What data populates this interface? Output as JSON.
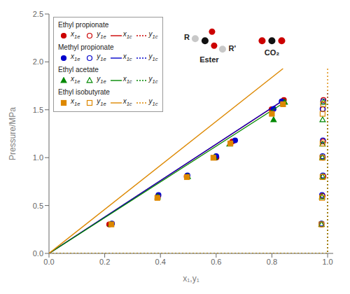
{
  "chart_data": {
    "type": "scatter",
    "xlabel": "x₁,y₁",
    "ylabel": "Pressure/MPa",
    "xlim": [
      0.0,
      1.02
    ],
    "ylim": [
      0.0,
      2.5
    ],
    "xticks": [
      {
        "value": 0.0,
        "label": "0.0"
      },
      0.2,
      0.4,
      0.6,
      0.8,
      {
        "value": 1.0,
        "label": "1.0"
      }
    ],
    "yticks": [
      {
        "value": 0.0,
        "label": "0.0"
      },
      0.5,
      {
        "value": 1.0,
        "label": "1.0"
      },
      1.5,
      {
        "value": 2.0,
        "label": "2.0"
      },
      2.5
    ],
    "grid": false,
    "legend": "upper left",
    "annotations": [
      "R",
      "R'",
      "Ester",
      "CO₂"
    ],
    "series": [
      {
        "name": "Ethyl propionate",
        "color": "#cc0000",
        "series": [
          {
            "name": "x1e",
            "type": "scatter",
            "marker": "circle",
            "x": [
              0.216,
              0.392,
              0.494,
              0.601,
              0.658,
              0.799,
              0.843
            ],
            "values": [
              0.302,
              0.6,
              0.803,
              1.001,
              1.168,
              1.505,
              1.602
            ]
          },
          {
            "name": "y1e",
            "type": "scatter",
            "marker": "circle-open",
            "x": [
              0.978,
              0.982,
              0.985,
              0.983,
              0.984,
              0.983,
              0.985
            ],
            "values": [
              0.302,
              0.6,
              0.803,
              1.001,
              1.168,
              1.505,
              1.602
            ]
          },
          {
            "name": "x1c",
            "type": "line",
            "line_style": "solid",
            "x": [
              0.0,
              0.843
            ],
            "values": [
              0.0,
              1.602
            ]
          },
          {
            "name": "y1c",
            "type": "line",
            "line_style": "dotted",
            "x": [
              0.0,
              1.0,
              1.0,
              1.0
            ],
            "values": [
              0.0,
              0.0,
              0.0,
              1.68
            ]
          }
        ]
      },
      {
        "name": "Methyl propionate",
        "color": "#0000cc",
        "series": [
          {
            "name": "x1e",
            "type": "scatter",
            "marker": "circle",
            "x": [
              0.226,
              0.393,
              0.497,
              0.6,
              0.668,
              0.806,
              0.835
            ],
            "values": [
              0.311,
              0.609,
              0.815,
              1.015,
              1.18,
              1.508,
              1.588
            ]
          },
          {
            "name": "y1e",
            "type": "scatter",
            "marker": "circle-open",
            "x": [
              0.978,
              0.98,
              0.983,
              0.982,
              0.983,
              0.982,
              0.984
            ],
            "values": [
              0.311,
              0.609,
              0.815,
              1.015,
              1.18,
              1.508,
              1.588
            ]
          },
          {
            "name": "x1c",
            "type": "line",
            "line_style": "solid",
            "x": [
              0.0,
              0.835
            ],
            "values": [
              0.0,
              1.588
            ]
          },
          {
            "name": "y1c",
            "type": "line",
            "line_style": "dotted",
            "x": [
              0.0,
              1.0,
              1.0,
              1.0
            ],
            "values": [
              0.0,
              0.0,
              0.0,
              1.7
            ]
          }
        ]
      },
      {
        "name": "Ethyl acetate",
        "color": "#008800",
        "series": [
          {
            "name": "x1e",
            "type": "scatter",
            "marker": "triangle",
            "x": [
              0.222,
              0.39,
              0.498,
              0.594,
              0.648,
              0.806,
              0.846
            ],
            "values": [
              0.302,
              0.59,
              0.801,
              1.001,
              1.141,
              1.395,
              1.579
            ]
          },
          {
            "name": "y1e",
            "type": "scatter",
            "marker": "triangle-open",
            "x": [
              0.978,
              0.98,
              0.982,
              0.981,
              0.982,
              0.982,
              0.985
            ],
            "values": [
              0.302,
              0.59,
              0.801,
              1.001,
              1.141,
              1.395,
              1.579
            ]
          },
          {
            "name": "x1c",
            "type": "line",
            "line_style": "solid",
            "x": [
              0.0,
              0.846
            ],
            "values": [
              0.0,
              1.579
            ]
          },
          {
            "name": "y1c",
            "type": "line",
            "line_style": "dotted",
            "x": [
              0.0,
              1.0,
              1.0,
              1.0
            ],
            "values": [
              0.0,
              0.0,
              0.0,
              1.6
            ]
          }
        ]
      },
      {
        "name": "Ethyl isobutyrate",
        "color": "#dd8800",
        "series": [
          {
            "name": "x1e",
            "type": "scatter",
            "marker": "square",
            "x": [
              0.224,
              0.389,
              0.495,
              0.59,
              0.651,
              0.8,
              0.84
            ],
            "values": [
              0.303,
              0.58,
              0.797,
              0.999,
              1.148,
              1.458,
              1.558
            ]
          },
          {
            "name": "y1e",
            "type": "scatter",
            "marker": "square-open",
            "x": [
              0.978,
              0.98,
              0.982,
              0.981,
              0.982,
              0.982,
              0.984
            ],
            "values": [
              0.303,
              0.58,
              0.797,
              0.999,
              1.148,
              1.458,
              1.558
            ]
          },
          {
            "name": "x1c",
            "type": "line",
            "line_style": "solid",
            "x": [
              0.0,
              0.84
            ],
            "values": [
              0.0,
              1.93
            ]
          },
          {
            "name": "y1c",
            "type": "line",
            "line_style": "dotted",
            "x": [
              0.0,
              1.0,
              1.0,
              1.0
            ],
            "values": [
              0.0,
              0.0,
              0.0,
              1.93
            ]
          }
        ]
      }
    ]
  }
}
